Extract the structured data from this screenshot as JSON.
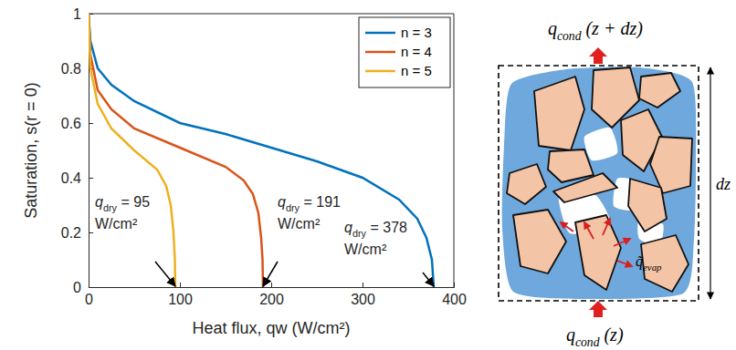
{
  "chart_data": {
    "type": "line",
    "x_label": "Heat flux, qw (W/cm²)",
    "y_label": "Saturation, s(r = 0)",
    "xlim": [
      0,
      400
    ],
    "ylim": [
      0,
      1
    ],
    "xticks": [
      0,
      100,
      200,
      300,
      400
    ],
    "yticks": [
      0,
      0.2,
      0.4,
      0.6,
      0.8,
      1
    ],
    "legend": "upper right",
    "series": [
      {
        "name": "n = 3",
        "color": "#0072BD",
        "x": [
          0,
          2,
          10,
          25,
          50,
          100,
          150,
          200,
          250,
          300,
          340,
          360,
          370,
          376,
          378
        ],
        "values": [
          1,
          0.9,
          0.8,
          0.74,
          0.68,
          0.6,
          0.56,
          0.51,
          0.46,
          0.4,
          0.32,
          0.25,
          0.18,
          0.1,
          0
        ]
      },
      {
        "name": "n = 4",
        "color": "#D95319",
        "x": [
          0,
          2,
          10,
          25,
          50,
          100,
          150,
          170,
          180,
          186,
          189,
          190.5,
          191
        ],
        "values": [
          1,
          0.85,
          0.72,
          0.65,
          0.58,
          0.51,
          0.44,
          0.39,
          0.34,
          0.27,
          0.18,
          0.1,
          0
        ]
      },
      {
        "name": "n = 5",
        "color": "#EDB120",
        "x": [
          0,
          2,
          10,
          25,
          50,
          75,
          85,
          90,
          93,
          94.5,
          95
        ],
        "values": [
          1,
          0.8,
          0.67,
          0.58,
          0.5,
          0.43,
          0.37,
          0.3,
          0.2,
          0.1,
          0
        ]
      }
    ],
    "annotations": [
      {
        "symbol": "q",
        "subscript": "dry",
        "text": "= 95",
        "unit": "W/cm²",
        "x": 95,
        "y": 0
      },
      {
        "symbol": "q",
        "subscript": "dry",
        "text": "= 191",
        "unit": "W/cm²",
        "x": 191,
        "y": 0
      },
      {
        "symbol": "q",
        "subscript": "dry",
        "text": "= 378",
        "unit": "W/cm²",
        "x": 378,
        "y": 0
      }
    ]
  },
  "diagram": {
    "top_label": {
      "symbol": "q",
      "subscript": "cond",
      "text": "(z + dz)"
    },
    "bottom_label": {
      "symbol": "q",
      "subscript": "cond",
      "text": "(z)"
    },
    "side_label": "dz",
    "evap_label": {
      "symbol": "q̃",
      "subscript": "evap"
    }
  }
}
